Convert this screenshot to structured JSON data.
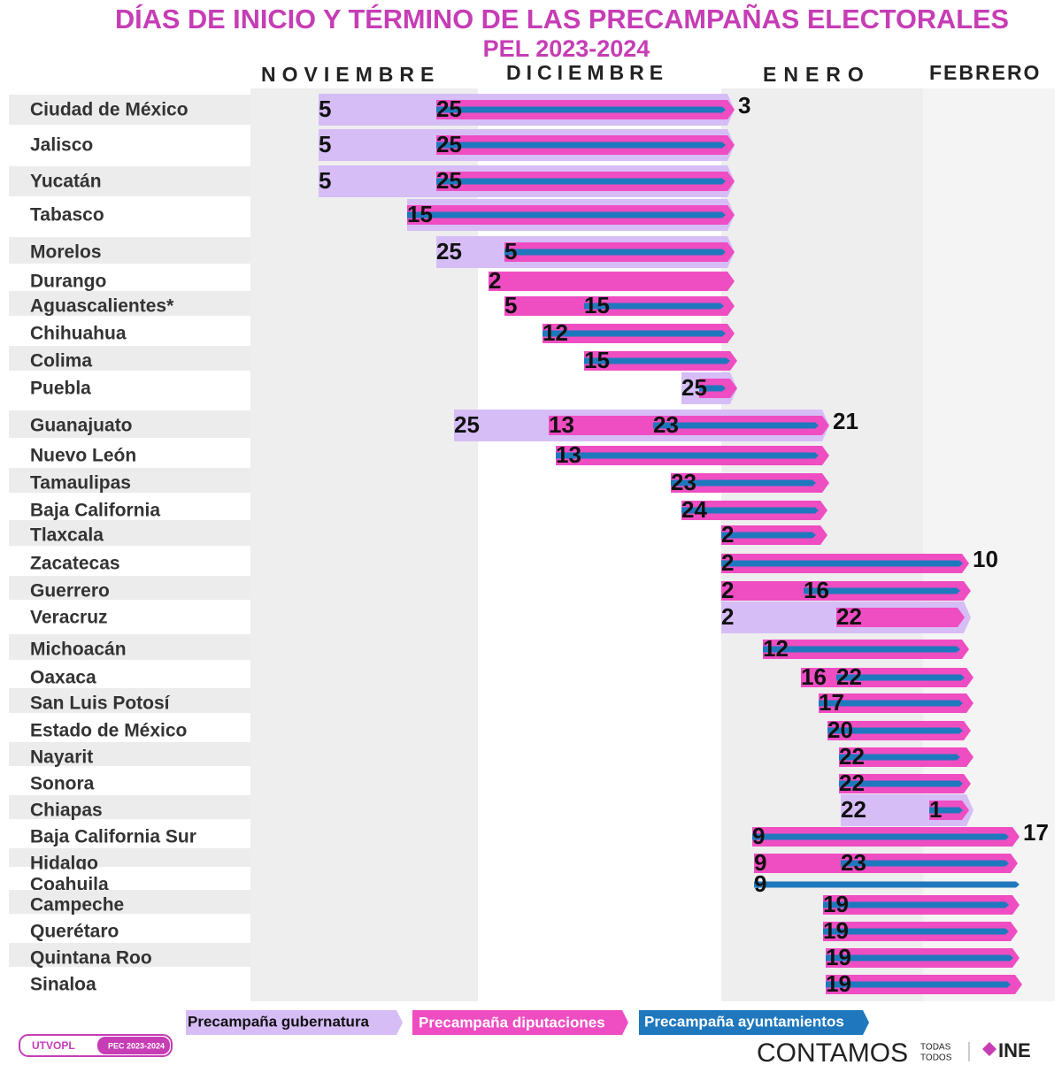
{
  "title": [
    "DÍAS DE INICIO Y TÉRMINO DE LAS PRECAMPAÑAS ELECTORALES",
    "PEL 2023-2024"
  ],
  "months": [
    "NOVIEMBRE",
    "DICIEMBRE",
    "ENERO",
    "FEBRERO"
  ],
  "rows": [
    {
      "label": "Ciudad de México",
      "gubernatura": {
        "start": 5,
        "end": 3
      },
      "diputaciones": {
        "start": 25
      },
      "ayuntamientos": {}
    },
    {
      "label": "Jalisco",
      "gubernatura": {
        "start": 5
      },
      "diputaciones": {
        "start": 25
      },
      "ayuntamientos": {}
    },
    {
      "label": "Yucatán",
      "gubernatura": {
        "start": 5
      },
      "diputaciones": {
        "start": 25
      },
      "ayuntamientos": {}
    },
    {
      "label": "Tabasco",
      "gubernatura": {
        "start": 15
      },
      "diputaciones": {},
      "ayuntamientos": {}
    },
    {
      "label": "Morelos",
      "gubernatura": {
        "start": 25
      },
      "diputaciones": {
        "start": 5
      },
      "ayuntamientos": {}
    },
    {
      "label": "Durango",
      "diputaciones": {
        "start": 2
      }
    },
    {
      "label": "Aguascalientes*",
      "diputaciones": {
        "start": 5
      },
      "ayuntamientos": {
        "start": 15
      }
    },
    {
      "label": "Chihuahua",
      "diputaciones": {
        "start": 12
      },
      "ayuntamientos": {}
    },
    {
      "label": "Colima",
      "diputaciones": {
        "start": 15
      },
      "ayuntamientos": {}
    },
    {
      "label": "Puebla",
      "gubernatura": {
        "start": 25
      },
      "diputaciones": {},
      "ayuntamientos": {}
    },
    {
      "label": "Guanajuato",
      "gubernatura": {
        "start": 25,
        "end": 21
      },
      "diputaciones": {
        "start": 13
      },
      "ayuntamientos": {
        "start": 23
      }
    },
    {
      "label": "Nuevo León",
      "diputaciones": {
        "start": 13
      },
      "ayuntamientos": {}
    },
    {
      "label": "Tamaulipas",
      "diputaciones": {
        "start": 23
      },
      "ayuntamientos": {}
    },
    {
      "label": "Baja California",
      "diputaciones": {
        "start": 24
      },
      "ayuntamientos": {}
    },
    {
      "label": "Tlaxcala",
      "diputaciones": {
        "start": 2
      },
      "ayuntamientos": {}
    },
    {
      "label": "Zacatecas",
      "diputaciones": {
        "start": 2,
        "end": 10
      },
      "ayuntamientos": {}
    },
    {
      "label": "Guerrero",
      "diputaciones": {
        "start": 2
      },
      "ayuntamientos": {
        "start": 16
      }
    },
    {
      "label": "Veracruz",
      "gubernatura": {
        "start": 2
      },
      "diputaciones": {
        "start": 22
      }
    },
    {
      "label": "Michoacán",
      "diputaciones": {
        "start": 12
      },
      "ayuntamientos": {}
    },
    {
      "label": "Oaxaca",
      "diputaciones": {
        "start": 16
      },
      "ayuntamientos": {
        "start": 22
      }
    },
    {
      "label": "San Luis Potosí",
      "diputaciones": {
        "start": 17
      },
      "ayuntamientos": {}
    },
    {
      "label": "Estado de México",
      "diputaciones": {
        "start": 20
      },
      "ayuntamientos": {}
    },
    {
      "label": "Nayarit",
      "diputaciones": {
        "start": 22
      },
      "ayuntamientos": {}
    },
    {
      "label": "Sonora",
      "diputaciones": {
        "start": 22
      },
      "ayuntamientos": {}
    },
    {
      "label": "Chiapas",
      "gubernatura": {
        "start": 22
      },
      "diputaciones": {
        "start": 1
      },
      "ayuntamientos": {}
    },
    {
      "label": "Baja California Sur",
      "diputaciones": {
        "start": 9,
        "end": 17
      },
      "ayuntamientos": {}
    },
    {
      "label": "Hidalgo",
      "diputaciones": {
        "start": 9
      },
      "ayuntamientos": {
        "start": 23
      }
    },
    {
      "label": "Coahuila",
      "ayuntamientos": {
        "start": 9
      }
    },
    {
      "label": "Campeche",
      "diputaciones": {
        "start": 19
      },
      "ayuntamientos": {}
    },
    {
      "label": "Querétaro",
      "diputaciones": {
        "start": 19
      },
      "ayuntamientos": {}
    },
    {
      "label": "Quintana Roo",
      "diputaciones": {
        "start": 19
      },
      "ayuntamientos": {}
    },
    {
      "label": "Sinaloa",
      "diputaciones": {
        "start": 19
      },
      "ayuntamientos": {}
    }
  ],
  "legend": [
    "Precampaña gubernatura",
    "Precampaña diputaciones",
    "Precampaña ayuntamientos"
  ],
  "footer": {
    "badge": "UTVOPL",
    "badge_tag": "PEC 2023-2024",
    "slogan": "CONTAMOS",
    "slogan_small": [
      "TODAS",
      "TODOS"
    ],
    "logo": "INE"
  }
}
